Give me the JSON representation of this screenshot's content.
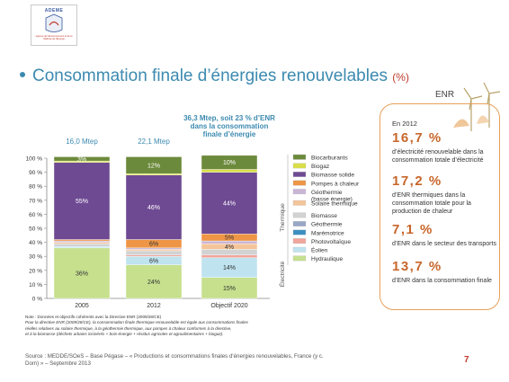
{
  "header": {
    "logo_text": "ADEME",
    "logo_tagline": "Agence de l'Environnement et de la Maîtrise de l'Energie",
    "title": "Consommation finale d’énergies renouvelables",
    "title_unit": "(%)"
  },
  "colors": {
    "accent": "#3c8ab0",
    "highlight": "#c8662a",
    "panel_border": "#e8a05a",
    "annotation": "#3c8ab0"
  },
  "chart_data": {
    "type": "bar",
    "stacked": true,
    "categories": [
      "2005",
      "2012",
      "Objectif 2020"
    ],
    "top_labels": [
      "16,0 Mtep",
      "22,1 Mtep",
      "36,3 Mtep, soit 23 % d’ENR dans la consommation finale d’énergie"
    ],
    "ylim": [
      0,
      100
    ],
    "yticks": [
      "0 %",
      "10 %",
      "20 %",
      "30 %",
      "40 %",
      "50 %",
      "60 %",
      "70 %",
      "80 %",
      "90 %",
      "100 %"
    ],
    "grid": false,
    "legend_position": "right",
    "series": [
      {
        "name": "Hydraulique",
        "color": "#c6e08e",
        "values": [
          36,
          24,
          15
        ],
        "labels": [
          "36%",
          "24%",
          "15%"
        ]
      },
      {
        "name": "Éolien",
        "color": "#bfe3ef",
        "values": [
          1,
          6,
          14
        ],
        "labels": [
          "",
          "6%",
          "14%"
        ]
      },
      {
        "name": "Photovoltaïque",
        "color": "#f2a59a",
        "values": [
          0,
          1,
          2
        ],
        "labels": [
          "",
          "",
          ""
        ]
      },
      {
        "name": "Marémotrice",
        "color": "#3d8fc0",
        "values": [
          0,
          0,
          0
        ],
        "labels": [
          "",
          "",
          ""
        ]
      },
      {
        "name": "Géothermie",
        "color": "#9aa6c6",
        "values": [
          0,
          0,
          0
        ],
        "labels": [
          "",
          "",
          ""
        ]
      },
      {
        "name": "Biomasse",
        "color": "#d2d2d2",
        "values": [
          2,
          3,
          4
        ],
        "labels": [
          "",
          "",
          ""
        ]
      },
      {
        "name": "Solaire thermique",
        "color": "#f5c59a",
        "values": [
          1,
          1,
          4
        ],
        "labels": [
          "",
          "",
          "4%"
        ]
      },
      {
        "name": "Géothermie (basse énergie)",
        "color": "#c9b6d6",
        "values": [
          1,
          1,
          2
        ],
        "labels": [
          "",
          "",
          ""
        ]
      },
      {
        "name": "Pompes à chaleur",
        "color": "#ee9546",
        "values": [
          1,
          6,
          5
        ],
        "labels": [
          "",
          "6%",
          "5%"
        ]
      },
      {
        "name": "Biomasse solide",
        "color": "#6e4a93",
        "values": [
          55,
          46,
          44
        ],
        "labels": [
          "55%",
          "46%",
          "44%"
        ]
      },
      {
        "name": "Biogaz",
        "color": "#d9de47",
        "values": [
          1,
          1,
          2
        ],
        "labels": [
          "",
          "",
          ""
        ]
      },
      {
        "name": "Biocarburants",
        "color": "#6c8a3b",
        "values": [
          3,
          12,
          10
        ],
        "labels": [
          "3%",
          "12%",
          "10%"
        ]
      }
    ],
    "legend_groups": [
      {
        "name": "Thermique",
        "start": 0,
        "count": 7
      },
      {
        "name": "Électricité",
        "start": 7,
        "count": 6
      }
    ],
    "legend_order": [
      "Biocarburants",
      "Biogaz",
      "Biomasse solide",
      "Pompes à chaleur",
      "Géothermie (basse énergie)",
      "Solaire thermique",
      "Biomasse",
      "Géothermie",
      "Marémotrice",
      "Photovoltaïque",
      "Éolien",
      "Hydraulique"
    ]
  },
  "notes": [
    "Note : Données et objectifs cohérents avec la Directive ENR (2009/28/CE)",
    "Pour la directive ENR (2009/28/CE), la consommation finale thermique renouvelable est égale aux consommations finales",
    "réelles relatives au solaire thermique, à la géothermie thermique, aux pompes à chaleur conformes à la directive,",
    "et à la biomasse (déchets urbains incinérés + bois-énergie + résidus agricoles et agroalimentaires + biogaz)."
  ],
  "source": "Source : MEDDE/SOeS – Base Pégase – « Productions et consommations finales d'énergies renouvelables, France (y c. Dom) » – Septembre 2013",
  "enr_panel": {
    "heading": "ENR",
    "year": "En 2012",
    "stats": [
      {
        "value": "16,7 %",
        "text": "d’électricité renouvelable dans la consommation totale d’électricité"
      },
      {
        "value": "17,2 %",
        "text": "d’ENR thermiques dans la consommation totale pour la production de chaleur"
      },
      {
        "value": "7,1 %",
        "text": "d’ENR dans le secteur des transports"
      },
      {
        "value": "13,7 %",
        "text": "d’ENR dans la consommation finale"
      }
    ]
  },
  "page_number": "7"
}
